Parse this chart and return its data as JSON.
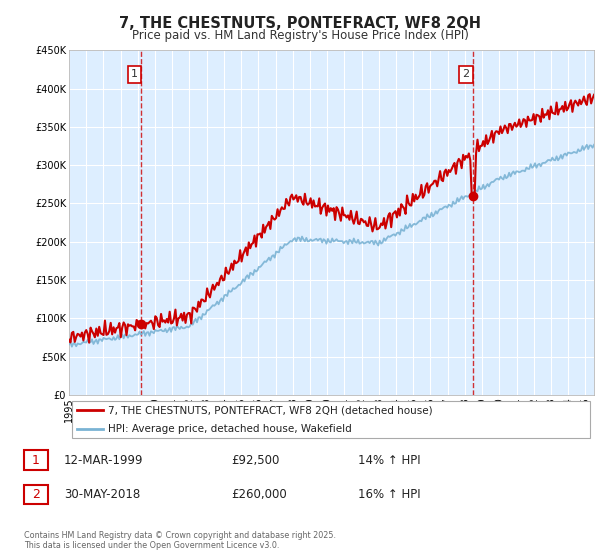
{
  "title": "7, THE CHESTNUTS, PONTEFRACT, WF8 2QH",
  "subtitle": "Price paid vs. HM Land Registry's House Price Index (HPI)",
  "ylim": [
    0,
    450000
  ],
  "yticks": [
    0,
    50000,
    100000,
    150000,
    200000,
    250000,
    300000,
    350000,
    400000,
    450000
  ],
  "x_start_year": 1995,
  "x_end_year": 2025,
  "hpi_color": "#7ab3d4",
  "price_color": "#cc0000",
  "sale1_x": 1999.2,
  "sale1_price": 92500,
  "sale2_x": 2018.45,
  "sale2_price": 260000,
  "legend_line1": "7, THE CHESTNUTS, PONTEFRACT, WF8 2QH (detached house)",
  "legend_line2": "HPI: Average price, detached house, Wakefield",
  "sale1_date": "12-MAR-1999",
  "sale1_price_str": "£92,500",
  "sale1_hpi": "14% ↑ HPI",
  "sale2_date": "30-MAY-2018",
  "sale2_price_str": "£260,000",
  "sale2_hpi": "16% ↑ HPI",
  "footnote": "Contains HM Land Registry data © Crown copyright and database right 2025.\nThis data is licensed under the Open Government Licence v3.0.",
  "background_color": "#ffffff",
  "plot_bg_color": "#ddeeff",
  "grid_color": "#ffffff"
}
